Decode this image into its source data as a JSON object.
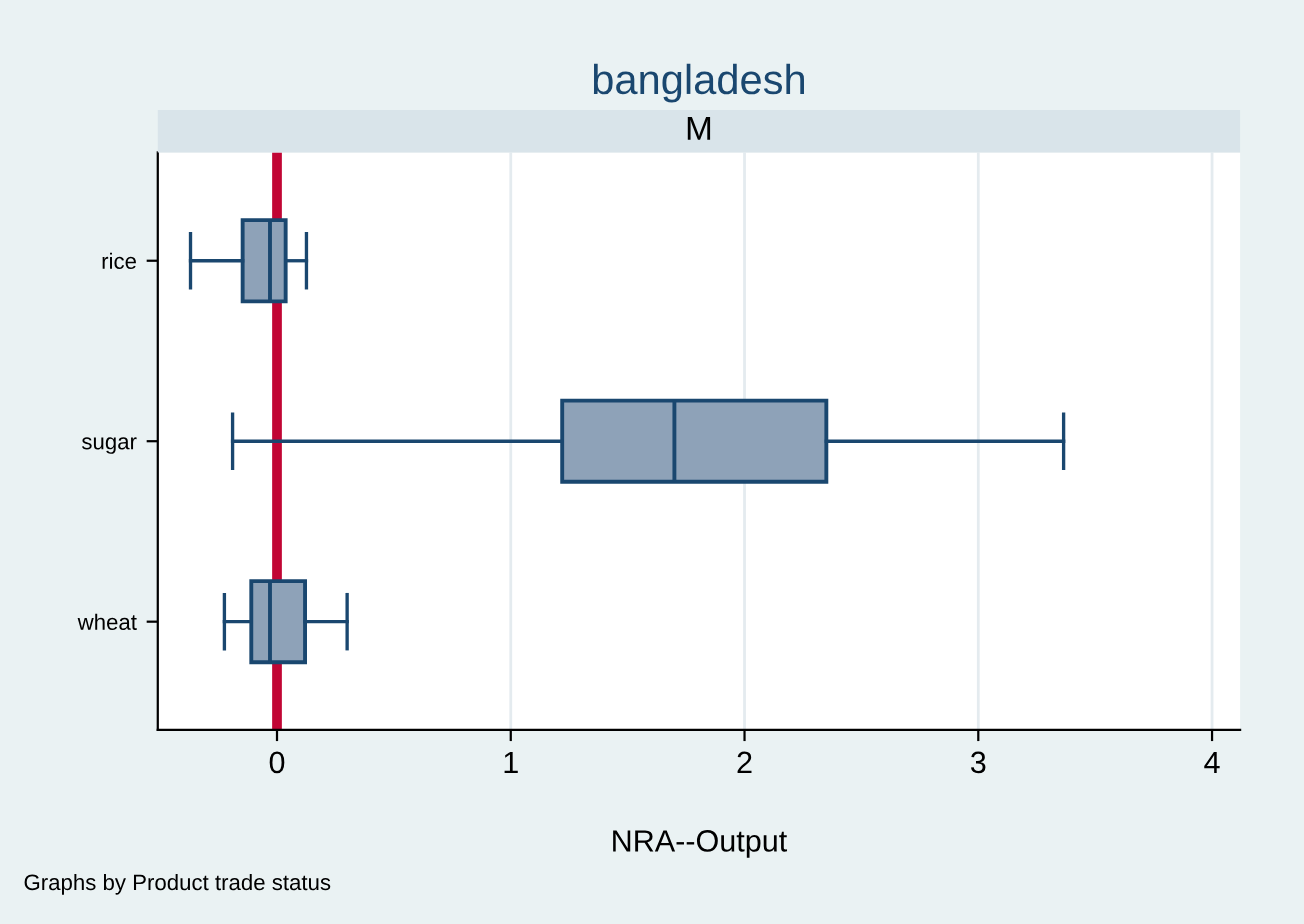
{
  "chart_data": {
    "type": "box",
    "title": "bangladesh",
    "subtitle": "M",
    "xlabel": "NRA--Output",
    "orientation": "horizontal",
    "categories": [
      "rice",
      "sugar",
      "wheat"
    ],
    "boxes": [
      {
        "low": -0.37,
        "q1": -0.147,
        "median": -0.03,
        "q3": 0.037,
        "high": 0.126
      },
      {
        "low": -0.19,
        "q1": 1.22,
        "median": 1.7,
        "q3": 2.35,
        "high": 3.365
      },
      {
        "low": -0.225,
        "q1": -0.11,
        "median": -0.03,
        "q3": 0.12,
        "high": 0.3
      }
    ],
    "color": "#8ea2b8",
    "xlim": [
      -0.51,
      4.12
    ],
    "xticks": [
      0,
      1,
      2,
      3,
      4
    ],
    "grid": "x",
    "ref_lines": [
      {
        "axis": "x",
        "value": 0,
        "color": "#c10534"
      }
    ],
    "annotations": [
      "Graphs by Product trade status"
    ]
  }
}
